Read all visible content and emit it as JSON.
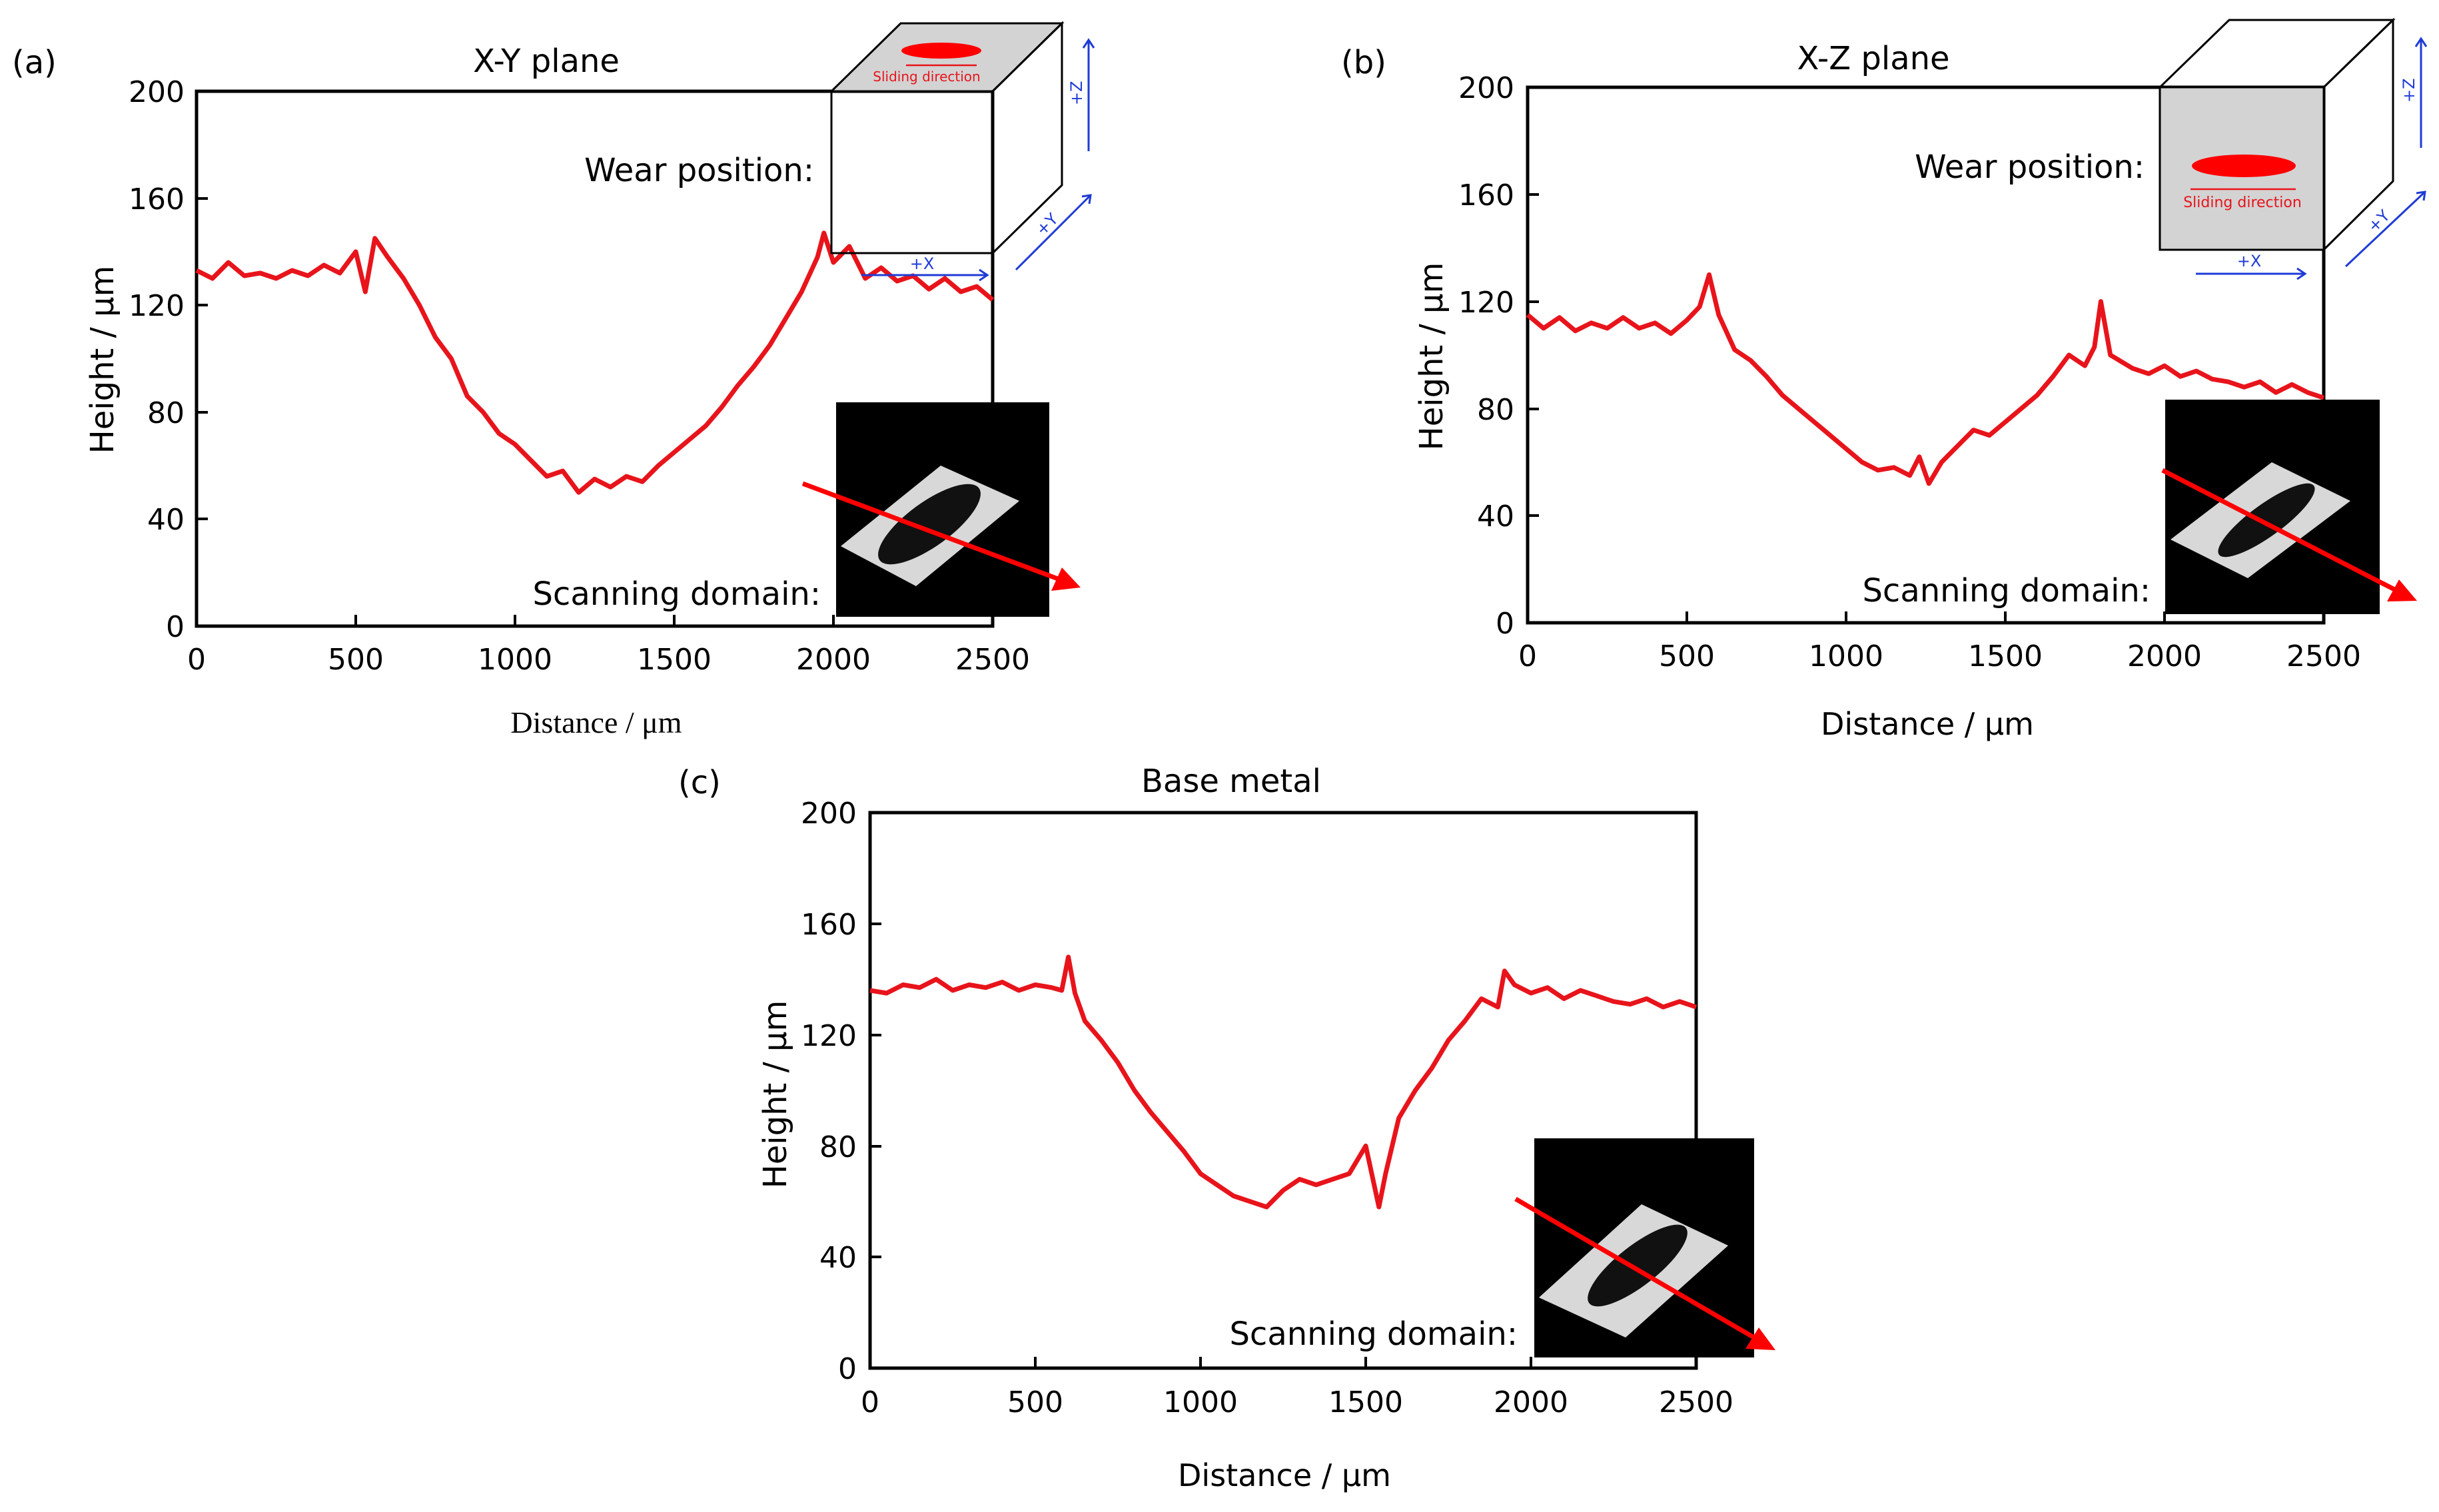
{
  "colors": {
    "curve": "#e8141b",
    "axis": "#000000",
    "arrow_blue": "#1f3bd6",
    "box_gray": "#d3d3d3",
    "inset_bg": "#000000"
  },
  "panels": [
    {
      "id": "a",
      "label": "(a)",
      "title": "X-Y plane",
      "wear_text": "Wear position:",
      "scan_text": "Scanning domain:",
      "ylabel": "Height / μm",
      "xlabel": "Distance / μm",
      "xticks": [
        "0",
        "500",
        "1000",
        "1500",
        "2000",
        "2500"
      ],
      "yticks": [
        "0",
        "40",
        "80",
        "120",
        "160",
        "200"
      ],
      "sliding_text": "Sliding direction",
      "axis_x": "+X",
      "axis_y": "+Y",
      "axis_z": "+Z",
      "icons": [
        "wear-box-icon",
        "scan-inset-icon",
        "scan-arrow-icon"
      ]
    },
    {
      "id": "b",
      "label": "(b)",
      "title": "X-Z plane",
      "wear_text": "Wear position:",
      "scan_text": "Scanning domain:",
      "ylabel": "Height / μm",
      "xlabel": "Distance / μm",
      "xticks": [
        "0",
        "500",
        "1000",
        "1500",
        "2000",
        "2500"
      ],
      "yticks": [
        "0",
        "40",
        "80",
        "120",
        "160",
        "200"
      ],
      "sliding_text": "Sliding direction",
      "axis_x": "+X",
      "axis_y": "+Y",
      "axis_z": "+Z",
      "icons": [
        "wear-box-icon",
        "scan-inset-icon",
        "scan-arrow-icon"
      ]
    },
    {
      "id": "c",
      "label": "(c)",
      "title": "Base metal",
      "scan_text": "Scanning domain:",
      "ylabel": "Height / μm",
      "xlabel": "Distance / μm",
      "xticks": [
        "0",
        "500",
        "1000",
        "1500",
        "2000",
        "2500"
      ],
      "yticks": [
        "0",
        "40",
        "80",
        "120",
        "160",
        "200"
      ],
      "icons": [
        "scan-inset-icon",
        "scan-arrow-icon"
      ]
    }
  ],
  "chart_data": [
    {
      "type": "line",
      "title": "X-Y plane",
      "xlabel": "Distance / μm",
      "ylabel": "Height / μm",
      "xlim": [
        0,
        2500
      ],
      "ylim": [
        0,
        200
      ],
      "grid": false,
      "series": [
        {
          "x": [
            0,
            50,
            100,
            150,
            200,
            250,
            300,
            350,
            400,
            450,
            500,
            530,
            560,
            600,
            650,
            700,
            750,
            800,
            850,
            900,
            950,
            1000,
            1050,
            1100,
            1150,
            1200,
            1250,
            1300,
            1350,
            1400,
            1450,
            1500,
            1550,
            1600,
            1650,
            1700,
            1750,
            1800,
            1850,
            1900,
            1950,
            1970,
            2000,
            2050,
            2100,
            2150,
            2200,
            2250,
            2300,
            2350,
            2400,
            2450,
            2500
          ],
          "y": [
            133,
            130,
            136,
            131,
            132,
            130,
            133,
            131,
            135,
            132,
            140,
            125,
            145,
            138,
            130,
            120,
            108,
            100,
            86,
            80,
            72,
            68,
            62,
            56,
            58,
            50,
            55,
            52,
            56,
            54,
            60,
            65,
            70,
            75,
            82,
            90,
            97,
            105,
            115,
            125,
            138,
            147,
            136,
            142,
            130,
            134,
            129,
            131,
            126,
            130,
            125,
            127,
            122
          ]
        }
      ]
    },
    {
      "type": "line",
      "title": "X-Z plane",
      "xlabel": "Distance / μm",
      "ylabel": "Height / μm",
      "xlim": [
        0,
        2500
      ],
      "ylim": [
        0,
        200
      ],
      "grid": false,
      "series": [
        {
          "x": [
            0,
            50,
            100,
            150,
            200,
            250,
            300,
            350,
            400,
            450,
            500,
            540,
            570,
            600,
            650,
            700,
            750,
            800,
            850,
            900,
            950,
            1000,
            1050,
            1100,
            1150,
            1200,
            1230,
            1260,
            1300,
            1350,
            1400,
            1450,
            1500,
            1550,
            1600,
            1650,
            1700,
            1750,
            1780,
            1800,
            1830,
            1900,
            1950,
            2000,
            2050,
            2100,
            2150,
            2200,
            2250,
            2300,
            2350,
            2400,
            2450,
            2500
          ],
          "y": [
            115,
            110,
            114,
            109,
            112,
            110,
            114,
            110,
            112,
            108,
            113,
            118,
            130,
            115,
            102,
            98,
            92,
            85,
            80,
            75,
            70,
            65,
            60,
            57,
            58,
            55,
            62,
            52,
            60,
            66,
            72,
            70,
            75,
            80,
            85,
            92,
            100,
            96,
            103,
            120,
            100,
            95,
            93,
            96,
            92,
            94,
            91,
            90,
            88,
            90,
            86,
            89,
            86,
            84
          ]
        }
      ]
    },
    {
      "type": "line",
      "title": "Base metal",
      "xlabel": "Distance / μm",
      "ylabel": "Height / μm",
      "xlim": [
        0,
        2500
      ],
      "ylim": [
        0,
        200
      ],
      "grid": false,
      "series": [
        {
          "x": [
            0,
            50,
            100,
            150,
            200,
            250,
            300,
            350,
            400,
            450,
            500,
            550,
            580,
            600,
            620,
            650,
            700,
            750,
            800,
            850,
            900,
            950,
            1000,
            1050,
            1100,
            1150,
            1200,
            1250,
            1300,
            1350,
            1400,
            1450,
            1500,
            1540,
            1560,
            1600,
            1650,
            1700,
            1750,
            1800,
            1850,
            1900,
            1920,
            1950,
            2000,
            2050,
            2100,
            2150,
            2200,
            2250,
            2300,
            2350,
            2400,
            2450,
            2500
          ],
          "y": [
            136,
            135,
            138,
            137,
            140,
            136,
            138,
            137,
            139,
            136,
            138,
            137,
            136,
            148,
            135,
            125,
            118,
            110,
            100,
            92,
            85,
            78,
            70,
            66,
            62,
            60,
            58,
            64,
            68,
            66,
            68,
            70,
            80,
            58,
            70,
            90,
            100,
            108,
            118,
            125,
            133,
            130,
            143,
            138,
            135,
            137,
            133,
            136,
            134,
            132,
            131,
            133,
            130,
            132,
            130
          ]
        }
      ]
    }
  ]
}
